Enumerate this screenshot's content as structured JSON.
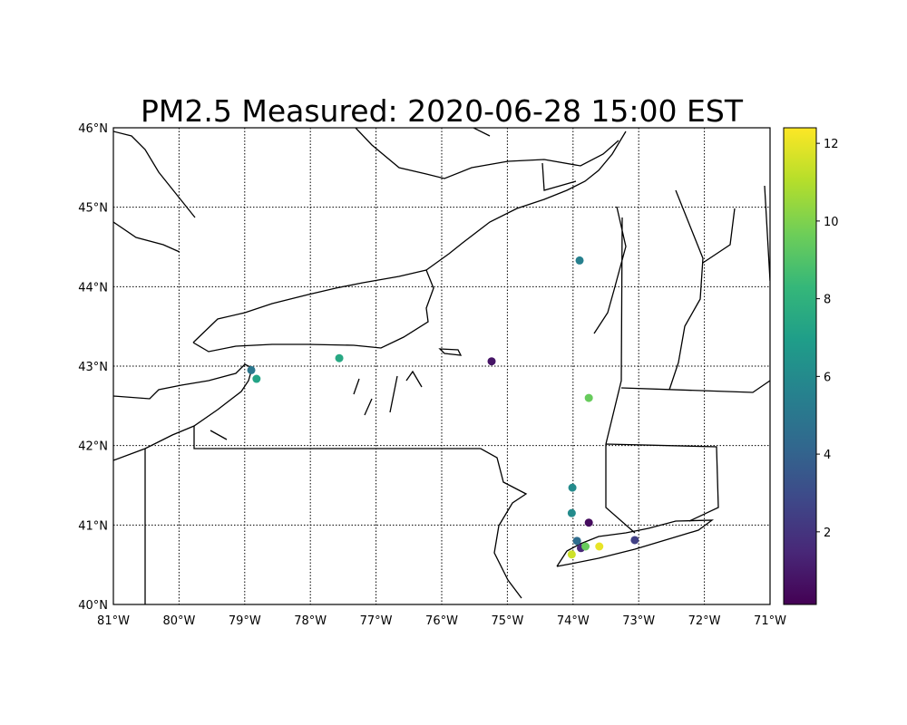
{
  "title": "PM2.5 Measured: 2020-06-28 15:00 EST",
  "map": {
    "projection": "equirectangular",
    "lon_range": [
      -81,
      -71
    ],
    "lat_range": [
      40,
      46
    ],
    "gridlines": "dotted",
    "lon_ticks": [
      -81,
      -80,
      -79,
      -78,
      -77,
      -76,
      -75,
      -74,
      -73,
      -72,
      -71
    ],
    "lon_tick_labels": [
      "81°W",
      "80°W",
      "79°W",
      "78°W",
      "77°W",
      "76°W",
      "75°W",
      "74°W",
      "73°W",
      "72°W",
      "71°W"
    ],
    "lat_ticks": [
      40,
      41,
      42,
      43,
      44,
      45,
      46
    ],
    "lat_tick_labels": [
      "40°N",
      "41°N",
      "42°N",
      "43°N",
      "44°N",
      "45°N",
      "46°N"
    ]
  },
  "colorbar": {
    "colormap": "viridis",
    "range": [
      0.13,
      12.4
    ],
    "ticks": [
      2,
      4,
      6,
      8,
      10,
      12
    ],
    "tick_labels": [
      "2",
      "4",
      "6",
      "8",
      "10",
      "12"
    ]
  },
  "chart_data": {
    "type": "scatter",
    "title": "PM2.5 Measured: 2020-06-28 15:00 EST",
    "points": [
      {
        "lon": -73.9,
        "lat": 44.33,
        "value": 5.5
      },
      {
        "lon": -77.56,
        "lat": 43.1,
        "value": 7.5
      },
      {
        "lon": -75.24,
        "lat": 43.06,
        "value": 0.8
      },
      {
        "lon": -78.9,
        "lat": 42.95,
        "value": 5.0
      },
      {
        "lon": -78.82,
        "lat": 42.84,
        "value": 7.2
      },
      {
        "lon": -73.76,
        "lat": 42.6,
        "value": 9.5
      },
      {
        "lon": -74.01,
        "lat": 41.47,
        "value": 6.0
      },
      {
        "lon": -74.02,
        "lat": 41.15,
        "value": 6.0
      },
      {
        "lon": -73.76,
        "lat": 41.03,
        "value": 0.5
      },
      {
        "lon": -73.94,
        "lat": 40.8,
        "value": 4.5
      },
      {
        "lon": -73.88,
        "lat": 40.71,
        "value": 1.5
      },
      {
        "lon": -73.81,
        "lat": 40.73,
        "value": 9.5
      },
      {
        "lon": -73.6,
        "lat": 40.73,
        "value": 12.0
      },
      {
        "lon": -73.06,
        "lat": 40.81,
        "value": 2.5
      },
      {
        "lon": -74.02,
        "lat": 40.63,
        "value": 11.5
      }
    ]
  }
}
